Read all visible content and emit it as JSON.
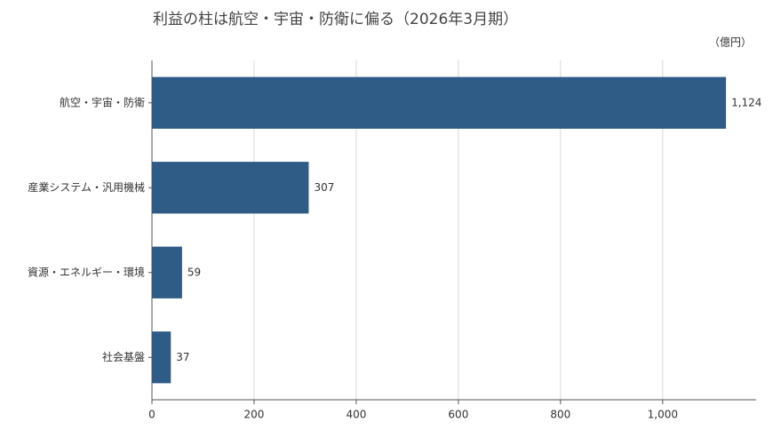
{
  "chart_data": {
    "type": "hbar",
    "title": "利益の柱は航空・宇宙・防衛に偏る（2026年3月期）",
    "unit_label": "（億円）",
    "categories": [
      "航空・宇宙・防衛",
      "産業システム・汎用機械",
      "資源・エネルギー・環境",
      "社会基盤"
    ],
    "values": [
      1124,
      307,
      59,
      37
    ],
    "value_labels": [
      "1,124",
      "307",
      "59",
      "37"
    ],
    "color": "#2e5c87",
    "xlim": [
      0,
      1183
    ],
    "xticks": [
      0,
      200,
      400,
      600,
      800,
      {
        "value": 1000,
        "label": "1,000"
      }
    ],
    "grid": true
  }
}
